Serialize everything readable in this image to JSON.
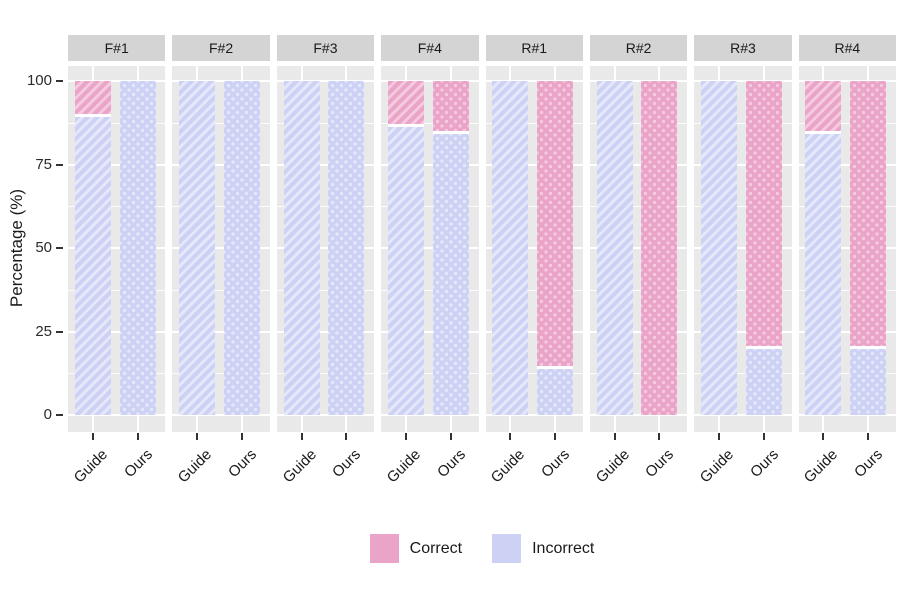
{
  "y_axis": {
    "label": "Percentage (%)",
    "tick_labels": [
      "100",
      "75",
      "50",
      "25",
      "0"
    ]
  },
  "legend": {
    "items": [
      {
        "label": "Correct",
        "color": "#e9a4c8"
      },
      {
        "label": "Incorrect",
        "color": "#cdd2f4"
      }
    ]
  },
  "colors": {
    "correct_base": "#e9a4c8",
    "correct_light": "#f5cadf",
    "incorrect_base": "#cdd2f4",
    "incorrect_light": "#e5e8fb",
    "panel_bg": "#e9e9e9",
    "strip_bg": "#d4d4d4",
    "grid": "#ffffff"
  },
  "patterns": {
    "Guide": "stripe",
    "Ours": "dot"
  },
  "chart_data": {
    "type": "bar",
    "stacked": true,
    "ylabel": "Percentage (%)",
    "ylim": [
      0,
      100
    ],
    "yticks": [
      0,
      25,
      50,
      75,
      100
    ],
    "grid": true,
    "legend_position": "bottom",
    "categories": [
      "Guide",
      "Ours"
    ],
    "series_legend": [
      "Correct",
      "Incorrect"
    ],
    "facets": [
      {
        "label": "F#1",
        "bars": [
          {
            "category": "Guide",
            "Correct": 10,
            "Incorrect": 90
          },
          {
            "category": "Ours",
            "Correct": 0,
            "Incorrect": 100
          }
        ]
      },
      {
        "label": "F#2",
        "bars": [
          {
            "category": "Guide",
            "Correct": 0,
            "Incorrect": 100
          },
          {
            "category": "Ours",
            "Correct": 0,
            "Incorrect": 100
          }
        ]
      },
      {
        "label": "F#3",
        "bars": [
          {
            "category": "Guide",
            "Correct": 0,
            "Incorrect": 100
          },
          {
            "category": "Ours",
            "Correct": 0,
            "Incorrect": 100
          }
        ]
      },
      {
        "label": "F#4",
        "bars": [
          {
            "category": "Guide",
            "Correct": 13,
            "Incorrect": 87
          },
          {
            "category": "Ours",
            "Correct": 15,
            "Incorrect": 85
          }
        ]
      },
      {
        "label": "R#1",
        "bars": [
          {
            "category": "Guide",
            "Correct": 0,
            "Incorrect": 100
          },
          {
            "category": "Ours",
            "Correct": 86,
            "Incorrect": 14
          }
        ]
      },
      {
        "label": "R#2",
        "bars": [
          {
            "category": "Guide",
            "Correct": 0,
            "Incorrect": 100
          },
          {
            "category": "Ours",
            "Correct": 100,
            "Incorrect": 0
          }
        ]
      },
      {
        "label": "R#3",
        "bars": [
          {
            "category": "Guide",
            "Correct": 0,
            "Incorrect": 100
          },
          {
            "category": "Ours",
            "Correct": 80,
            "Incorrect": 20
          }
        ]
      },
      {
        "label": "R#4",
        "bars": [
          {
            "category": "Guide",
            "Correct": 15,
            "Incorrect": 85
          },
          {
            "category": "Ours",
            "Correct": 80,
            "Incorrect": 20
          }
        ]
      }
    ]
  }
}
